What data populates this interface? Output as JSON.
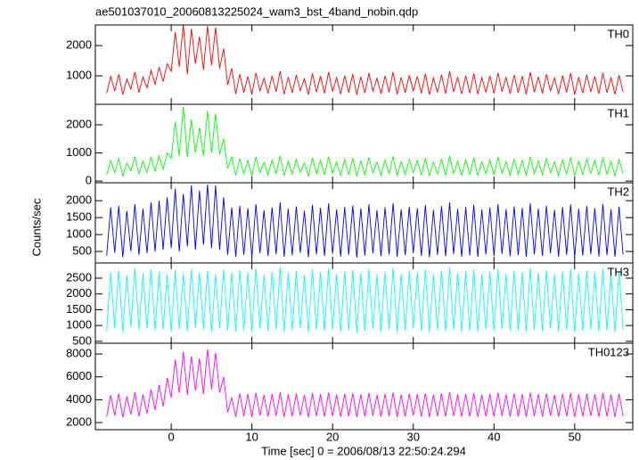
{
  "chart_data": {
    "type": "line",
    "title": "ae501037010_20060813225024_wam3_bst_4band_nobin.qdp",
    "y_label": "Counts/sec",
    "x_label": "Time [sec] 0 = 2006/08/13 22:50:24.294",
    "xlim": [
      -9.4,
      57.2
    ],
    "xticks": [
      0,
      10,
      20,
      30,
      40,
      50
    ],
    "x": [
      -8,
      -7.5,
      -7,
      -6.5,
      -6,
      -5.5,
      -5,
      -4.5,
      -4,
      -3.5,
      -3,
      -2.5,
      -2,
      -1.5,
      -1,
      -0.5,
      0,
      0.5,
      1,
      1.5,
      2,
      2.5,
      3,
      3.5,
      4,
      4.5,
      5,
      5.5,
      6,
      6.5,
      7,
      7.5,
      8,
      8.5,
      9,
      9.5,
      10,
      10.5,
      11,
      11.5,
      12,
      12.5,
      13,
      13.5,
      14,
      14.5,
      15,
      15.5,
      16,
      16.5,
      17,
      17.5,
      18,
      18.5,
      19,
      19.5,
      20,
      20.5,
      21,
      21.5,
      22,
      22.5,
      23,
      23.5,
      24,
      24.5,
      25,
      25.5,
      26,
      26.5,
      27,
      27.5,
      28,
      28.5,
      29,
      29.5,
      30,
      30.5,
      31,
      31.5,
      32,
      32.5,
      33,
      33.5,
      34,
      34.5,
      35,
      35.5,
      36,
      36.5,
      37,
      37.5,
      38,
      38.5,
      39,
      39.5,
      40,
      40.5,
      41,
      41.5,
      42,
      42.5,
      43,
      43.5,
      44,
      44.5,
      45,
      45.5,
      46,
      46.5,
      47,
      47.5,
      48,
      48.5,
      49,
      49.5,
      50,
      50.5,
      51,
      51.5,
      52,
      52.5,
      53,
      53.5,
      54,
      54.5,
      55,
      55.5,
      56
    ],
    "series": [
      {
        "name": "TH0",
        "color": "#ff0000",
        "ylim": [
          60,
          2680
        ],
        "yticks": [
          1000,
          2000
        ],
        "values": [
          420,
          980,
          510,
          1050,
          380,
          890,
          560,
          1120,
          450,
          960,
          600,
          1180,
          720,
          1290,
          810,
          1400,
          1150,
          2450,
          1300,
          2700,
          1050,
          2550,
          1400,
          2300,
          1200,
          2650,
          1350,
          2600,
          1250,
          1900,
          700,
          1250,
          400,
          1050,
          450,
          980,
          380,
          1100,
          500,
          920,
          420,
          1000,
          470,
          1150,
          390,
          960,
          440,
          1030,
          510,
          900,
          380,
          1080,
          460,
          990,
          420,
          1120,
          480,
          940,
          400,
          1010,
          450,
          1060,
          370,
          970,
          430,
          1090,
          490,
          920,
          410,
          1000,
          460,
          1130,
          390,
          950,
          440,
          1020,
          500,
          980,
          420,
          1070,
          380,
          930,
          450,
          1040,
          410,
          1150,
          470,
          960,
          400,
          1010,
          430,
          1080,
          390,
          940,
          460,
          1000,
          420,
          1100,
          480,
          950,
          410,
          1030,
          440,
          990,
          390,
          1120,
          460,
          970,
          420,
          1050,
          500,
          930,
          400,
          1010,
          450,
          1090,
          380,
          960,
          430,
          1040,
          470,
          980,
          410,
          1100,
          440,
          950,
          390,
          1020,
          460
        ]
      },
      {
        "name": "TH1",
        "color": "#00ff00",
        "ylim": [
          -60,
          2730
        ],
        "yticks": [
          0,
          1000,
          2000
        ],
        "values": [
          220,
          730,
          310,
          800,
          180,
          640,
          360,
          870,
          250,
          710,
          300,
          850,
          350,
          900,
          420,
          1000,
          800,
          2100,
          900,
          2650,
          850,
          2200,
          1000,
          1900,
          900,
          2500,
          1000,
          2400,
          950,
          1500,
          450,
          850,
          200,
          800,
          250,
          730,
          180,
          850,
          300,
          670,
          220,
          750,
          270,
          900,
          190,
          710,
          240,
          780,
          310,
          650,
          180,
          830,
          260,
          740,
          220,
          870,
          280,
          690,
          200,
          760,
          250,
          810,
          170,
          720,
          230,
          840,
          290,
          670,
          210,
          750,
          260,
          880,
          190,
          700,
          240,
          770,
          300,
          730,
          220,
          820,
          180,
          680,
          250,
          790,
          210,
          900,
          270,
          710,
          200,
          760,
          230,
          830,
          190,
          690,
          260,
          750,
          220,
          850,
          280,
          700,
          210,
          780,
          240,
          740,
          190,
          870,
          260,
          720,
          220,
          800,
          300,
          680,
          200,
          760,
          250,
          840,
          180,
          710,
          230,
          790,
          270,
          730,
          210,
          850,
          240,
          700,
          190,
          770,
          260
        ]
      },
      {
        "name": "TH2",
        "color": "#0000ff",
        "ylim": [
          160,
          2530
        ],
        "yticks": [
          500,
          1000,
          1500,
          2000
        ],
        "values": [
          380,
          1800,
          460,
          1850,
          330,
          1700,
          510,
          1900,
          400,
          1760,
          450,
          1950,
          500,
          2000,
          550,
          2100,
          600,
          2350,
          500,
          2200,
          650,
          2450,
          550,
          2300,
          700,
          2480,
          600,
          2450,
          550,
          2100,
          400,
          1800,
          350,
          1850,
          400,
          1780,
          330,
          1900,
          450,
          1720,
          370,
          1800,
          420,
          1950,
          340,
          1760,
          390,
          1830,
          460,
          1700,
          330,
          1880,
          410,
          1790,
          370,
          1920,
          430,
          1740,
          350,
          1810,
          400,
          1860,
          320,
          1770,
          380,
          1890,
          440,
          1720,
          360,
          1800,
          410,
          1930,
          340,
          1750,
          390,
          1820,
          450,
          1780,
          370,
          1870,
          330,
          1730,
          400,
          1840,
          360,
          1950,
          420,
          1760,
          350,
          1810,
          380,
          1880,
          340,
          1740,
          410,
          1800,
          370,
          1900,
          430,
          1750,
          360,
          1830,
          390,
          1790,
          340,
          1920,
          410,
          1770,
          370,
          1850,
          450,
          1730,
          350,
          1810,
          400,
          1890,
          330,
          1760,
          380,
          1840,
          420,
          1780,
          360,
          1900,
          390,
          1750,
          340,
          1820,
          410
        ]
      },
      {
        "name": "TH3",
        "color": "#00ffff",
        "ylim": [
          440,
          2980
        ],
        "yticks": [
          500,
          1000,
          1500,
          2000,
          2500
        ],
        "values": [
          820,
          2680,
          910,
          2750,
          780,
          2590,
          960,
          2820,
          850,
          2660,
          900,
          2780,
          830,
          2700,
          870,
          2610,
          800,
          2750,
          880,
          2640,
          820,
          2800,
          940,
          2690,
          860,
          2730,
          790,
          2620,
          900,
          2770,
          840,
          2680,
          800,
          2750,
          850,
          2680,
          780,
          2800,
          900,
          2620,
          820,
          2700,
          870,
          2850,
          790,
          2660,
          840,
          2730,
          910,
          2600,
          780,
          2780,
          860,
          2690,
          820,
          2820,
          880,
          2640,
          800,
          2710,
          850,
          2760,
          770,
          2670,
          830,
          2790,
          890,
          2620,
          810,
          2700,
          860,
          2830,
          790,
          2650,
          840,
          2720,
          900,
          2680,
          820,
          2770,
          780,
          2630,
          850,
          2740,
          810,
          2850,
          870,
          2660,
          800,
          2710,
          830,
          2780,
          790,
          2640,
          860,
          2700,
          820,
          2800,
          880,
          2650,
          810,
          2730,
          840,
          2690,
          790,
          2820,
          860,
          2670,
          820,
          2750,
          900,
          2630,
          800,
          2710,
          850,
          2790,
          780,
          2660,
          830,
          2740,
          870,
          2680,
          810,
          2800,
          840,
          2650,
          790,
          2720,
          860
        ]
      },
      {
        "name": "TH0123",
        "color": "#ff00ff",
        "ylim": [
          1380,
          8940
        ],
        "yticks": [
          2000,
          4000,
          6000,
          8000
        ],
        "values": [
          2500,
          4400,
          2600,
          4550,
          2450,
          4300,
          2700,
          4650,
          2550,
          4450,
          2800,
          4900,
          3100,
          5300,
          3400,
          5900,
          4200,
          7500,
          4600,
          8200,
          4400,
          7800,
          4800,
          7600,
          4500,
          8400,
          4900,
          8100,
          4600,
          6000,
          2900,
          4200,
          2500,
          4550,
          2550,
          4480,
          2480,
          4600,
          2600,
          4420,
          2520,
          4500,
          2570,
          4650,
          2490,
          4460,
          2540,
          4530,
          2610,
          4400,
          2480,
          4580,
          2560,
          4490,
          2520,
          4620,
          2580,
          4440,
          2500,
          4510,
          2550,
          4560,
          2470,
          4470,
          2530,
          4590,
          2590,
          4420,
          2510,
          4500,
          2560,
          4630,
          2490,
          4450,
          2540,
          4520,
          2600,
          4480,
          2520,
          4570,
          2480,
          4430,
          2550,
          4540,
          2510,
          4650,
          2570,
          4460,
          2500,
          4510,
          2530,
          4580,
          2490,
          4440,
          2560,
          4500,
          2520,
          4600,
          2580,
          4450,
          2510,
          4530,
          2540,
          4490,
          2490,
          4620,
          2560,
          4470,
          2520,
          4550,
          2600,
          4430,
          2500,
          4510,
          2550,
          4590,
          2480,
          4460,
          2530,
          4540,
          2570,
          4480,
          2510,
          4600,
          2540,
          4450,
          2490,
          4520,
          2560
        ]
      }
    ]
  }
}
